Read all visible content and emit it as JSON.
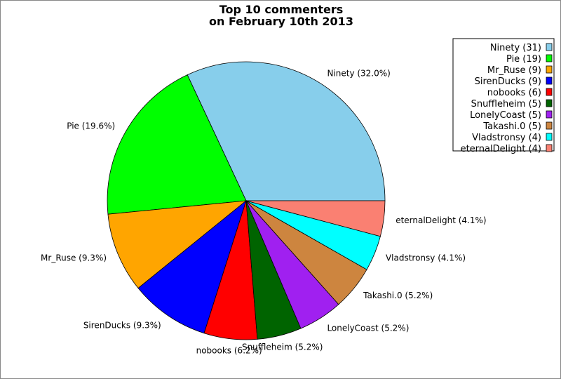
{
  "chart_data": {
    "type": "pie",
    "title": [
      "Top 10 commenters",
      "on February 10th 2013"
    ],
    "start_angle_deg": 0,
    "direction": "counterclockwise",
    "legend_position": "top-right",
    "slices": [
      {
        "name": "Ninety",
        "value": 31,
        "percent": "32.0%",
        "color": "#87CEEB"
      },
      {
        "name": "Pie",
        "value": 19,
        "percent": "19.6%",
        "color": "#00FF00"
      },
      {
        "name": "Mr_Ruse",
        "value": 9,
        "percent": "9.3%",
        "color": "#FFA500"
      },
      {
        "name": "SirenDucks",
        "value": 9,
        "percent": "9.3%",
        "color": "#0000FF"
      },
      {
        "name": "nobooks",
        "value": 6,
        "percent": "6.2%",
        "color": "#FF0000"
      },
      {
        "name": "Snuffleheim",
        "value": 5,
        "percent": "5.2%",
        "color": "#006400"
      },
      {
        "name": "LonelyCoast",
        "value": 5,
        "percent": "5.2%",
        "color": "#A020F0"
      },
      {
        "name": "Takashi.0",
        "value": 5,
        "percent": "5.2%",
        "color": "#CD853F"
      },
      {
        "name": "Vladstronsy",
        "value": 4,
        "percent": "4.1%",
        "color": "#00FFFF"
      },
      {
        "name": "eternalDelight",
        "value": 4,
        "percent": "4.1%",
        "color": "#FA8072"
      }
    ]
  }
}
